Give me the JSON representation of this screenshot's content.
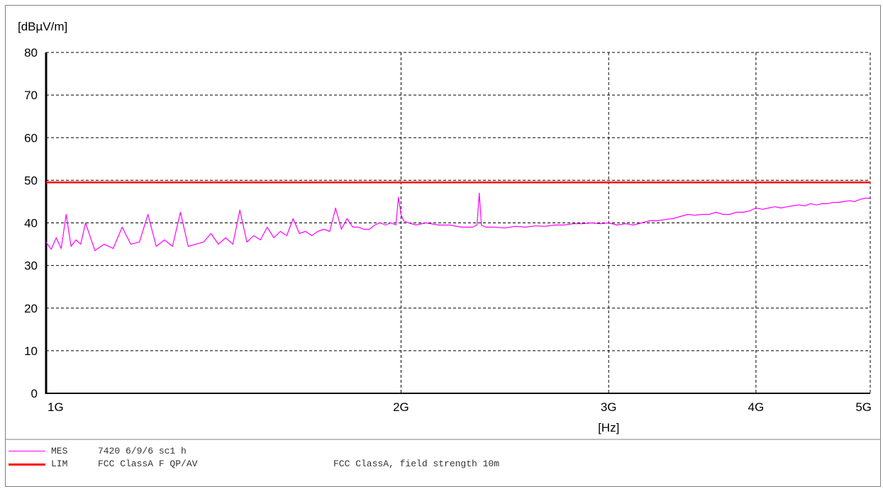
{
  "chart_data": {
    "type": "line",
    "ylabel": "[dBµV/m]",
    "xlabel": "[Hz]",
    "xscale": "log",
    "xlim": [
      1000000000,
      5000000000
    ],
    "ylim": [
      0,
      80
    ],
    "yticks": [
      0,
      10,
      20,
      30,
      40,
      50,
      60,
      70,
      80
    ],
    "xticks": [
      {
        "value": 1000000000,
        "label": "1G"
      },
      {
        "value": 2000000000,
        "label": "2G"
      },
      {
        "value": 3000000000,
        "label": "3G"
      },
      {
        "value": 4000000000,
        "label": "4G"
      },
      {
        "value": 5000000000,
        "label": "5G"
      }
    ],
    "grid": true,
    "series": [
      {
        "name": "MES",
        "color": "#ff00ff",
        "x": [
          1000000000,
          1010000000,
          1020000000,
          1030000000,
          1040000000,
          1050000000,
          1060000000,
          1070000000,
          1080000000,
          1100000000,
          1120000000,
          1140000000,
          1160000000,
          1180000000,
          1200000000,
          1220000000,
          1240000000,
          1260000000,
          1280000000,
          1300000000,
          1320000000,
          1340000000,
          1360000000,
          1380000000,
          1400000000,
          1420000000,
          1440000000,
          1460000000,
          1480000000,
          1500000000,
          1520000000,
          1540000000,
          1560000000,
          1580000000,
          1600000000,
          1620000000,
          1640000000,
          1660000000,
          1680000000,
          1700000000,
          1720000000,
          1740000000,
          1760000000,
          1780000000,
          1800000000,
          1820000000,
          1840000000,
          1860000000,
          1880000000,
          1900000000,
          1920000000,
          1940000000,
          1960000000,
          1980000000,
          1990000000,
          2000000000,
          2010000000,
          2030000000,
          2060000000,
          2100000000,
          2150000000,
          2200000000,
          2250000000,
          2300000000,
          2320000000,
          2330000000,
          2340000000,
          2360000000,
          2400000000,
          2450000000,
          2500000000,
          2550000000,
          2600000000,
          2650000000,
          2700000000,
          2750000000,
          2800000000,
          2850000000,
          2900000000,
          2950000000,
          3000000000,
          3050000000,
          3100000000,
          3150000000,
          3200000000,
          3250000000,
          3300000000,
          3350000000,
          3400000000,
          3450000000,
          3500000000,
          3550000000,
          3600000000,
          3650000000,
          3700000000,
          3750000000,
          3800000000,
          3850000000,
          3900000000,
          3950000000,
          4000000000,
          4050000000,
          4100000000,
          4150000000,
          4200000000,
          4250000000,
          4300000000,
          4350000000,
          4400000000,
          4450000000,
          4500000000,
          4550000000,
          4600000000,
          4650000000,
          4700000000,
          4750000000,
          4800000000,
          4850000000,
          4900000000,
          4950000000,
          5000000000
        ],
        "values": [
          35.5,
          33.8,
          36.5,
          34.0,
          42.0,
          34.5,
          36.0,
          35.0,
          40.0,
          33.5,
          35.0,
          34.0,
          39.0,
          35.0,
          35.5,
          42.0,
          34.5,
          36.0,
          34.5,
          42.5,
          34.5,
          35.0,
          35.5,
          37.5,
          35.0,
          36.5,
          35.0,
          43.0,
          35.5,
          37.0,
          36.0,
          39.0,
          36.5,
          38.0,
          37.0,
          41.0,
          37.5,
          38.0,
          37.0,
          38.0,
          38.5,
          38.0,
          43.5,
          38.5,
          41.0,
          39.0,
          39.0,
          38.5,
          38.5,
          39.5,
          40.0,
          39.5,
          40.0,
          39.5,
          46.0,
          42.0,
          40.5,
          40.0,
          39.5,
          40.0,
          39.5,
          39.5,
          39.0,
          39.0,
          39.5,
          47.0,
          39.5,
          39.0,
          39.0,
          38.8,
          39.2,
          39.0,
          39.3,
          39.2,
          39.5,
          39.5,
          39.8,
          39.8,
          40.0,
          39.8,
          40.0,
          39.5,
          39.8,
          39.5,
          40.0,
          40.5,
          40.5,
          40.8,
          41.0,
          41.5,
          42.0,
          41.8,
          42.0,
          42.0,
          42.5,
          42.0,
          42.0,
          42.5,
          42.5,
          42.8,
          43.5,
          43.2,
          43.5,
          43.8,
          43.5,
          43.8,
          44.0,
          44.2,
          44.0,
          44.5,
          44.2,
          44.5,
          44.5,
          44.8,
          44.8,
          45.0,
          45.2,
          45.0,
          45.5,
          45.8,
          45.8
        ]
      },
      {
        "name": "LIM",
        "color": "#ff0000",
        "x": [
          1000000000,
          5000000000
        ],
        "values": [
          49.5,
          49.5
        ]
      }
    ]
  },
  "legend": {
    "items": [
      {
        "tag": "MES",
        "desc": "7420 6/9/6 sc1 h",
        "comment": "",
        "color": "#ff00ff"
      },
      {
        "tag": "LIM",
        "desc": "FCC ClassA F QP/AV",
        "comment": "FCC ClassA, field strength 10m",
        "color": "#ff0000"
      }
    ]
  }
}
